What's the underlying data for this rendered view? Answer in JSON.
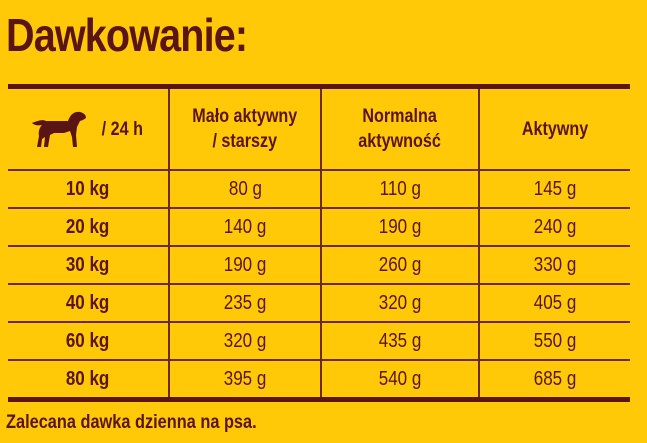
{
  "title": "Dawkowanie:",
  "colors": {
    "background": "#FFC907",
    "text": "#5A1414"
  },
  "table": {
    "header": {
      "icon": "dog-icon",
      "first": "/ 24 h",
      "columns": [
        [
          "Mało aktywny",
          "/ starszy"
        ],
        [
          "Normalna",
          "aktywność"
        ],
        [
          "Aktywny"
        ]
      ]
    },
    "rows": [
      [
        "10 kg",
        "80 g",
        "110 g",
        "145 g"
      ],
      [
        "20 kg",
        "140 g",
        "190 g",
        "240 g"
      ],
      [
        "30 kg",
        "190 g",
        "260 g",
        "330 g"
      ],
      [
        "40 kg",
        "235 g",
        "320 g",
        "405 g"
      ],
      [
        "60 kg",
        "320 g",
        "435 g",
        "550 g"
      ],
      [
        "80 kg",
        "395 g",
        "540 g",
        "685 g"
      ]
    ]
  },
  "footer": "Zalecana dawka dzienna na psa."
}
